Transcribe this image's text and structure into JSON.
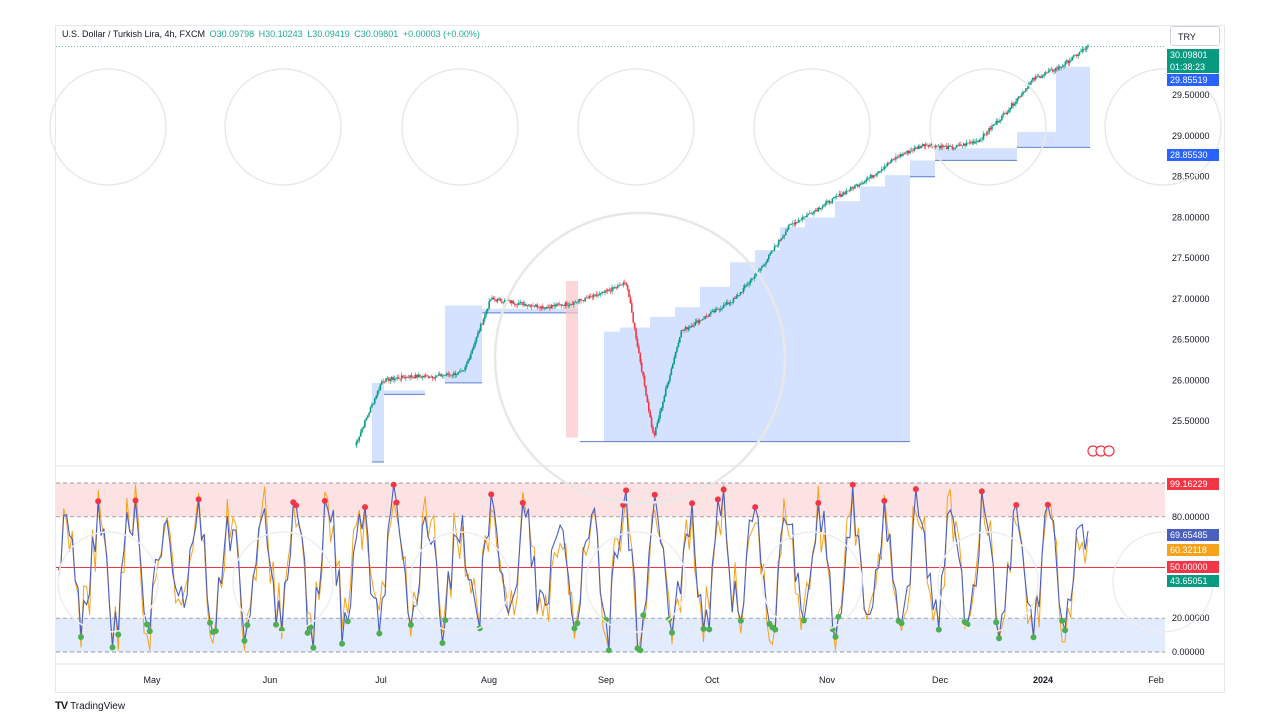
{
  "header": {
    "symbol": "U.S. Dollar / Turkish Lira, 4h, FXCM",
    "open": "O30.09798",
    "high": "H30.10243",
    "low": "L30.09419",
    "close": "C30.09801",
    "change": "+0.00003 (+0.00%)"
  },
  "currency_button": "TRY",
  "price_tags": {
    "last": "30.09801",
    "countdown": "01:38:23",
    "level_a": "29.85519",
    "level_b": "28.85530"
  },
  "osc_tags": {
    "t1": "99.16229",
    "t2": "69.65485",
    "t3": "60.32118",
    "t4": "50.00000",
    "t5": "43.65051"
  },
  "colors": {
    "up": "#089981",
    "down": "#f23645",
    "fill": "#c9dbff",
    "osc_fast": "#4a5fc1",
    "osc_slow": "#f7a21b",
    "tag_last": "#089981",
    "tag_level": "#2962ff",
    "tag_red": "#f23645",
    "tag_orange": "#f7a21b",
    "tag_green": "#089981"
  },
  "brand": {
    "name": "TradingView",
    "mark": "TV"
  },
  "chart_data": [
    {
      "type": "line",
      "x": [
        "Jun 20",
        "Jun 25",
        "Jul 1",
        "Jul 8",
        "Jul 15",
        "Jul 18",
        "Jul 25",
        "Aug 1",
        "Aug 8",
        "Aug 15",
        "Aug 22",
        "Aug 25",
        "Aug 28",
        "Sep 5",
        "Sep 15",
        "Sep 25",
        "Oct 5",
        "Oct 15",
        "Oct 25",
        "Nov 5",
        "Nov 15",
        "Nov 25",
        "Dec 5",
        "Dec 15",
        "Dec 25",
        "Jan 1",
        "Jan 8",
        "Jan 15"
      ],
      "y": [
        25.2,
        26.0,
        26.05,
        26.05,
        26.1,
        27.0,
        26.95,
        26.9,
        26.95,
        27.05,
        27.2,
        25.3,
        26.6,
        26.8,
        27.0,
        27.4,
        27.9,
        28.1,
        28.3,
        28.5,
        28.75,
        28.9,
        28.85,
        28.95,
        29.3,
        29.7,
        29.85,
        30.09801
      ],
      "yticks": [
        25.5,
        26.0,
        26.5,
        27.0,
        27.5,
        28.0,
        28.5,
        29.0,
        29.5
      ],
      "ytick_labels": [
        "25.50000",
        "26.00000",
        "26.50000",
        "27.00000",
        "27.50000",
        "28.00000",
        "28.50000",
        "29.00000",
        "29.50000"
      ],
      "ylim": [
        25.0,
        30.3
      ]
    },
    {
      "type": "line",
      "x_labels": [
        "May",
        "Jun",
        "Jul",
        "Aug",
        "Sep",
        "Oct",
        "Nov",
        "Dec",
        "2024",
        "Feb"
      ],
      "yticks": [
        0,
        20,
        50,
        80
      ],
      "ytick_labels": [
        "0.00000",
        "20.00000",
        "50.00000",
        "80.00000"
      ],
      "ylim": [
        0,
        100
      ],
      "bands": {
        "upper": [
          80,
          100
        ],
        "lower": [
          0,
          20
        ]
      },
      "midline": 50,
      "last_values": {
        "upper_band": 99.16229,
        "fast": 69.65485,
        "slow": 60.32118,
        "mid": 50.0,
        "low_val": 43.65051
      }
    }
  ]
}
